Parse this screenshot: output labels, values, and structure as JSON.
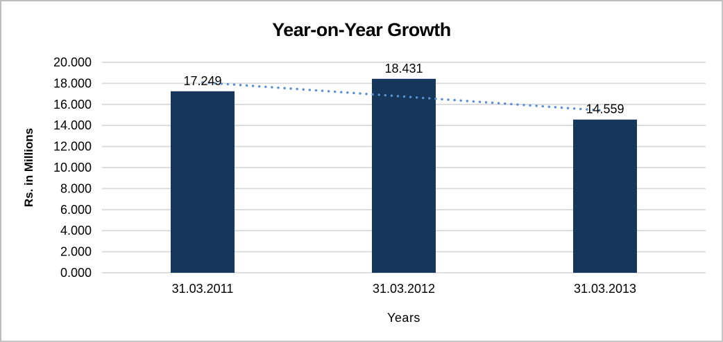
{
  "window": {
    "background_color": "#FFFFFF",
    "border_color": "#C6C6C6"
  },
  "chart_data": {
    "type": "bar",
    "title": "Year-on-Year Growth",
    "xlabel": "Years",
    "ylabel": "Rs. in Millions",
    "categories": [
      "31.03.2011",
      "31.03.2012",
      "31.03.2013"
    ],
    "values": [
      17.249,
      18.431,
      14.559
    ],
    "data_labels": [
      "17.249",
      "18.431",
      "14.559"
    ],
    "ylim": [
      0,
      20
    ],
    "ytick_step": 2,
    "ytick_labels": [
      "0.000",
      "2.000",
      "4.000",
      "6.000",
      "8.000",
      "10.000",
      "12.000",
      "14.000",
      "16.000",
      "18.000",
      "20.000"
    ],
    "grid": true,
    "legend": "none",
    "bar_color": "#16365C",
    "gridline_color": "#D9D9D9",
    "text_color": "#000000",
    "trendline": {
      "type": "linear",
      "style": "dotted",
      "color": "#5B8FD4",
      "fitted_values": [
        18.091,
        16.746,
        15.401
      ]
    }
  }
}
